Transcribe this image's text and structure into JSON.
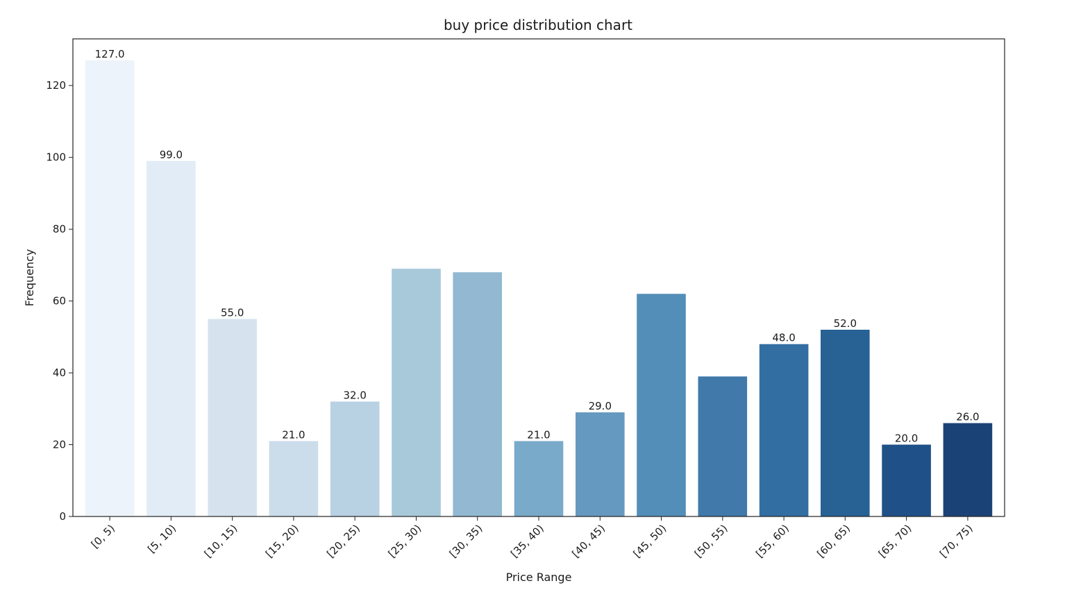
{
  "chart_data": {
    "type": "bar",
    "title": "buy price distribution chart",
    "xlabel": "Price Range",
    "ylabel": "Frequency",
    "ylim": [
      0,
      133
    ],
    "yticks": [
      0,
      20,
      40,
      60,
      80,
      100,
      120
    ],
    "grid": false,
    "categories": [
      "[0, 5)",
      "[5, 10)",
      "[10, 15)",
      "[15, 20)",
      "[20, 25)",
      "[25, 30)",
      "[30, 35)",
      "[35, 40)",
      "[40, 45)",
      "[45, 50)",
      "[50, 55)",
      "[55, 60)",
      "[60, 65)",
      "[65, 70)",
      "[70, 75)"
    ],
    "values": [
      127,
      99,
      55,
      21,
      32,
      69,
      68,
      21,
      29,
      62,
      39,
      48,
      52,
      20,
      26
    ],
    "data_labels": [
      "127.0",
      "99.0",
      "55.0",
      "21.0",
      "32.0",
      "",
      "",
      "21.0",
      "29.0",
      "",
      "",
      "48.0",
      "52.0",
      "20.0",
      "26.0"
    ],
    "colors": [
      "#edf3fa",
      "#e1ecf6",
      "#d6e3ef",
      "#cbdcea",
      "#b8d1e3",
      "#a8c9da",
      "#92b9d1",
      "#7aaac9",
      "#6699bf",
      "#538eb8",
      "#4079aa",
      "#336ea2",
      "#286194",
      "#1f5088",
      "#1b4277"
    ]
  }
}
